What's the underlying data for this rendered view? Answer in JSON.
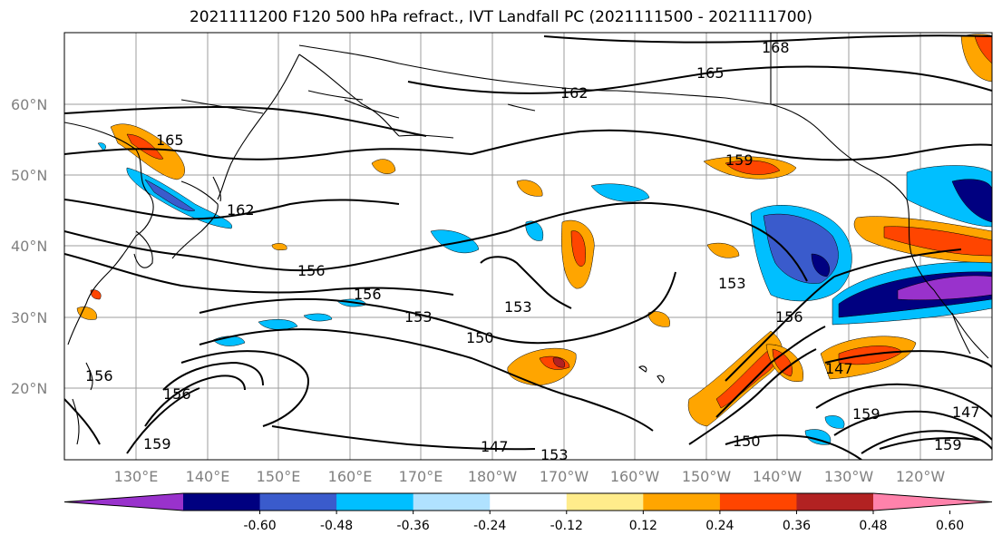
{
  "title": "2021111200 F120 500 hPa refract., IVT Landfall PC (2021111500 - 2021111700)",
  "lat_labels": [
    "60°N",
    "50°N",
    "40°N",
    "30°N",
    "20°N"
  ],
  "lon_labels": [
    "130°E",
    "140°E",
    "150°E",
    "160°E",
    "170°E",
    "180°W",
    "170°W",
    "160°W",
    "150°W",
    "140°W",
    "130°W",
    "120°W"
  ],
  "contour_labels": [
    "168",
    "165",
    "162",
    "159",
    "165",
    "162",
    "156",
    "156",
    "153",
    "153",
    "150",
    "153",
    "156",
    "147",
    "153",
    "147",
    "159",
    "159",
    "150",
    "156",
    "159",
    "147",
    "156"
  ],
  "colorbar": {
    "ticks": [
      "-0.60",
      "-0.48",
      "-0.36",
      "-0.24",
      "-0.12",
      "0.12",
      "0.24",
      "0.36",
      "0.48",
      "0.60"
    ],
    "colors": [
      "#9932cc",
      "#000080",
      "#3a5bcc",
      "#00bfff",
      "#b0e2ff",
      "#ffffff",
      "#ffec8b",
      "#ffa500",
      "#ff4500",
      "#b22222",
      "#ff82ab"
    ]
  }
}
